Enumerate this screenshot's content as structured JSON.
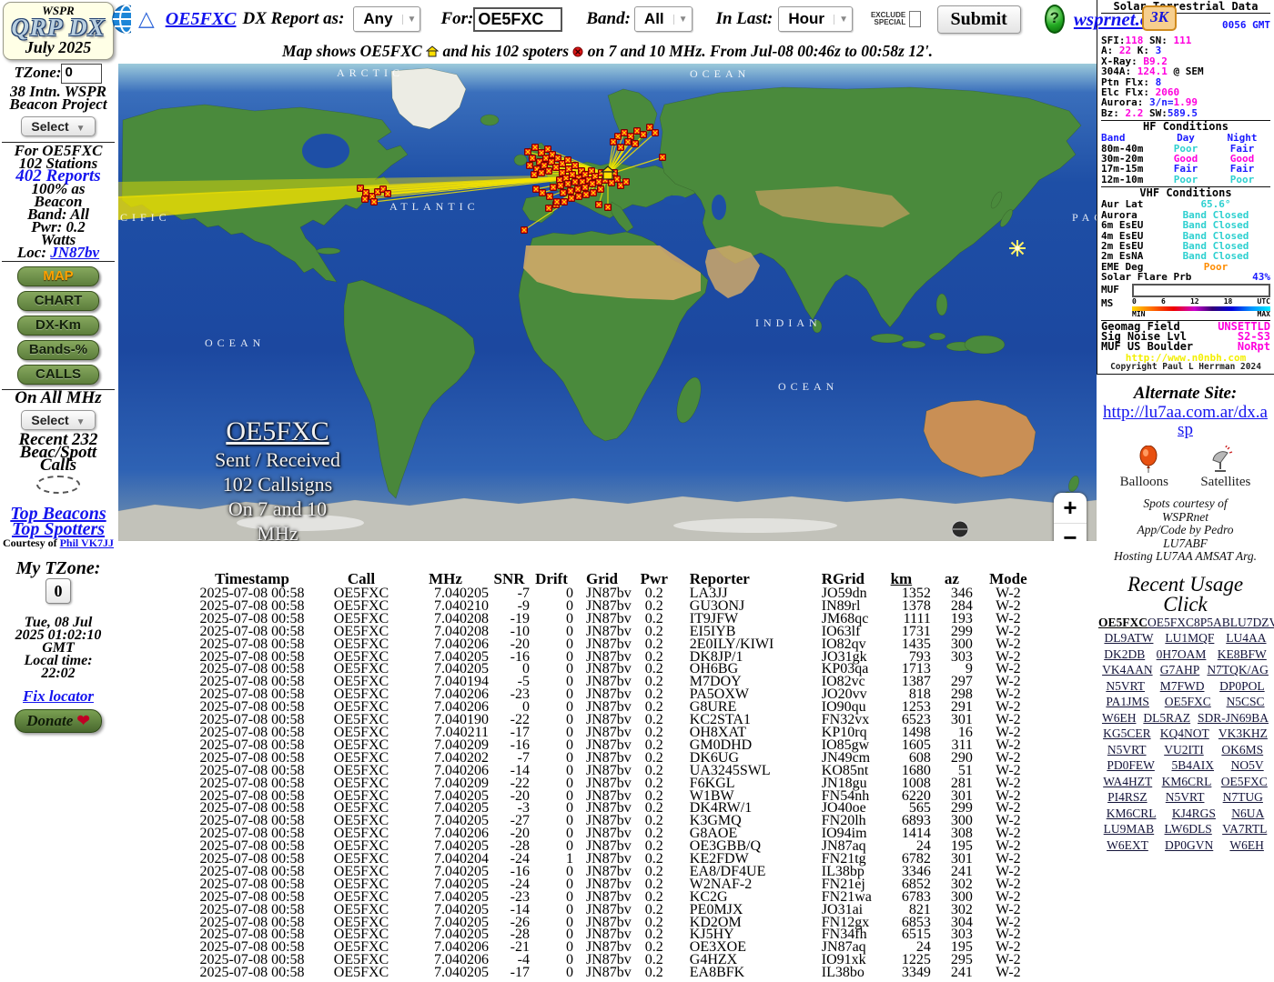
{
  "left": {
    "logo_top": "WSPR",
    "logo_main": "QRP DX",
    "logo_sub": "July 2025",
    "tzone_label": "TZone:",
    "tzone_value": "0",
    "project_line1": "38 Intn. WSPR",
    "project_line2": "Beacon Project",
    "select_label": "Select",
    "for_line": "For OE5FXC",
    "stations_line": "102 Stations",
    "reports_link": "402 Reports",
    "pct_line1": "100% as",
    "pct_line2": "Beacon",
    "band_line": "Band: All",
    "pwr_line1": "Pwr: 0.2",
    "pwr_line2": "Watts",
    "loc_label": "Loc: ",
    "loc_link": "JN87bv",
    "buttons": [
      "MAP",
      "CHART",
      "DX-Km",
      "Bands-%",
      "CALLS"
    ],
    "on_all": "On All MHz",
    "recent_line1": "Recent 232",
    "recent_line2": "Beac/Spott",
    "recent_line3": "Calls",
    "top_beacons": "Top Beacons",
    "top_spotters": "Top Spotters",
    "courtesy": "Courtesy of ",
    "courtesy_link": "Phil VK7JJ",
    "my_tzone": "My TZone:",
    "my_tzone_value": "0",
    "date_line1": "Tue, 08 Jul",
    "date_line2": "2025 01:02:10",
    "date_line3": "GMT",
    "date_line4": "Local time:",
    "date_line5": "22:02",
    "fix_locator": "Fix locator",
    "donate": "Donate",
    "heart": "❤"
  },
  "toolbar": {
    "callsign_link": "OE5FXC",
    "dx_report_as": "DX Report as:",
    "any_select": "Any",
    "for_label": "For:",
    "for_value": "OE5FXC",
    "band_label": "Band:",
    "band_select": "All",
    "in_last_label": "In Last:",
    "in_last_select": "Hour",
    "exclude_line1": "EXCLUDE",
    "exclude_line2": "SPECIAL",
    "submit": "Submit",
    "help": "?",
    "wsprnet": "wsprnet.org",
    "badge_3k": "3K"
  },
  "caption": {
    "p1": "Map shows OE5FXC",
    "p2": "and his 102 spoters",
    "p3": "on 7 and 10 MHz. From Jul-08 00:46z to 00:58z 12'."
  },
  "map": {
    "overlay": [
      "OE5FXC",
      "Sent / Received",
      "102 Callsigns",
      "On 7 and 10",
      "MHz"
    ],
    "labels": [
      "ARCTIC",
      "OCEAN",
      "ATLANTIC",
      "CIFIC",
      "OCEAN",
      "INDIAN",
      "OCEAN",
      "PAC"
    ],
    "zoom_in": "+",
    "zoom_out": "−"
  },
  "solar": {
    "title": "Solar-Terrestrial Data",
    "time": "0056 GMT",
    "lines": [
      [
        {
          "t": "SFI:",
          "c": "k"
        },
        {
          "t": "118",
          "c": "m"
        },
        {
          "t": " SN: ",
          "c": "k"
        },
        {
          "t": "111",
          "c": "m"
        }
      ],
      [
        {
          "t": "A: ",
          "c": "k"
        },
        {
          "t": "22",
          "c": "m"
        },
        {
          "t": " K: ",
          "c": "k"
        },
        {
          "t": "3",
          "c": "b"
        }
      ],
      [
        {
          "t": "X-Ray: ",
          "c": "k"
        },
        {
          "t": "B9.2",
          "c": "m"
        }
      ],
      [
        {
          "t": "304A: ",
          "c": "k"
        },
        {
          "t": "124.1",
          "c": "m"
        },
        {
          "t": " @ SEM",
          "c": "k"
        }
      ],
      [
        {
          "t": "Ptn Flx: ",
          "c": "k"
        },
        {
          "t": "8",
          "c": "b"
        }
      ],
      [
        {
          "t": "Elc Flx: ",
          "c": "k"
        },
        {
          "t": "2060",
          "c": "m"
        }
      ],
      [
        {
          "t": "Aurora: ",
          "c": "k"
        },
        {
          "t": "3/n=",
          "c": "b"
        },
        {
          "t": "1.99",
          "c": "m"
        }
      ],
      [
        {
          "t": "Bz: ",
          "c": "k"
        },
        {
          "t": "2.2",
          "c": "m"
        },
        {
          "t": " SW:",
          "c": "k"
        },
        {
          "t": "589.5",
          "c": "b"
        }
      ]
    ],
    "hf_title": "HF Conditions",
    "hf_headers": [
      "Band",
      "Day",
      "Night"
    ],
    "hf_rows": [
      {
        "band": "80m-40m",
        "day": "Poor",
        "dc": "c",
        "night": "Fair",
        "nc": "b"
      },
      {
        "band": "30m-20m",
        "day": "Good",
        "dc": "m",
        "night": "Good",
        "nc": "m"
      },
      {
        "band": "17m-15m",
        "day": "Fair",
        "dc": "b",
        "night": "Fair",
        "nc": "b"
      },
      {
        "band": "12m-10m",
        "day": "Poor",
        "dc": "c",
        "night": "Poor",
        "nc": "c"
      }
    ],
    "vhf_title": "VHF Conditions",
    "vhf_rows": [
      {
        "label": "Aur Lat",
        "value": "65.6°",
        "c": "c"
      },
      {
        "label": "Aurora",
        "value": "Band Closed",
        "c": "c"
      },
      {
        "label": "6m EsEU",
        "value": "Band Closed",
        "c": "c"
      },
      {
        "label": "4m EsEU",
        "value": "Band Closed",
        "c": "c"
      },
      {
        "label": "2m EsEU",
        "value": "Band Closed",
        "c": "c"
      },
      {
        "label": "2m EsNA",
        "value": "Band Closed",
        "c": "c"
      },
      {
        "label": "EME Deg",
        "value": "Poor",
        "c": "o"
      }
    ],
    "flare_label": "Solar Flare Prb",
    "flare_value": "43%",
    "muf_label": "MUF",
    "ms_label": "MS",
    "scale_ticks": [
      "0",
      "6",
      "12",
      "18",
      "UTC"
    ],
    "scale_min": "MIN",
    "scale_max": "MAX",
    "status_rows": [
      {
        "label": "Geomag Field",
        "value": "UNSETTLD",
        "c": "m"
      },
      {
        "label": "Sig Noise Lvl",
        "value": "S2-S3",
        "c": "m"
      },
      {
        "label": "MUF US Boulder",
        "value": "NoRpt",
        "c": "m"
      }
    ],
    "url": "http://www.n0nbh.com",
    "copyright": "Copyright Paul L Herrman 2024"
  },
  "alternate": {
    "title": "Alternate Site:",
    "link": "http://lu7aa.com.ar/dx.asp",
    "balloons": "Balloons",
    "satellites": "Satellites",
    "credits": [
      "Spots courtesy of",
      "WSPRnet",
      "App/Code by Pedro",
      "LU7ABF",
      "Hosting LU7AA AMSAT Arg."
    ]
  },
  "usage": {
    "title_line1": "Recent Usage",
    "title_line2": "Click",
    "rows": [
      [
        "OE5FXC",
        "OE5FXC",
        "8P5AB",
        "LU7DZV"
      ],
      [
        "DL9ATW",
        "LU1MQF",
        "LU4AA"
      ],
      [
        "DK2DB",
        "0H7OAM",
        "KE8BFW"
      ],
      [
        "VK4AAN",
        "G7AHP",
        "N7TQK/AG"
      ],
      [
        "N5VRT",
        "M7FWD",
        "DP0POL"
      ],
      [
        "PA1JMS",
        "OE5FXC",
        "N5CSC"
      ],
      [
        "W6EH",
        "DL5RAZ",
        "SDR-JN69BA"
      ],
      [
        "KG5CER",
        "KQ4NOT",
        "VK3KHZ"
      ],
      [
        "N5VRT",
        "VU2ITI",
        "OK6MS"
      ],
      [
        "PD0FEW",
        "5B4AIX",
        "NO5V"
      ],
      [
        "WA4HZT",
        "KM6CRL",
        "OE5FXC"
      ],
      [
        "PI4RSZ",
        "N5VRT",
        "N7TUG"
      ],
      [
        "KM6CRL",
        "KJ4RGS",
        "N6UA"
      ],
      [
        "LU9MAB",
        "LW6DLS",
        "VA7RTL"
      ],
      [
        "W6EXT",
        "DP0GVN",
        "W6EH"
      ]
    ]
  },
  "table": {
    "columns": [
      "Timestamp",
      "Call",
      "MHz",
      "SNR",
      "Drift",
      "Grid",
      "Pwr",
      "Reporter",
      "RGrid",
      "km",
      "az",
      "Mode"
    ],
    "rows": [
      [
        "2025-07-08 00:58",
        "OE5FXC",
        "7.040205",
        "-7",
        "0",
        "JN87bv",
        "0.2",
        "LA3JJ",
        "JO59dn",
        "1352",
        "346",
        "W-2"
      ],
      [
        "2025-07-08 00:58",
        "OE5FXC",
        "7.040210",
        "-9",
        "0",
        "JN87bv",
        "0.2",
        "GU3ONJ",
        "IN89rl",
        "1378",
        "284",
        "W-2"
      ],
      [
        "2025-07-08 00:58",
        "OE5FXC",
        "7.040208",
        "-19",
        "0",
        "JN87bv",
        "0.2",
        "IT9JFW",
        "JM68qc",
        "1111",
        "193",
        "W-2"
      ],
      [
        "2025-07-08 00:58",
        "OE5FXC",
        "7.040208",
        "-10",
        "0",
        "JN87bv",
        "0.2",
        "EI5IYB",
        "IO63lf",
        "1731",
        "299",
        "W-2"
      ],
      [
        "2025-07-08 00:58",
        "OE5FXC",
        "7.040206",
        "-20",
        "0",
        "JN87bv",
        "0.2",
        "2E0ILY/KIWI",
        "IO82qv",
        "1435",
        "300",
        "W-2"
      ],
      [
        "2025-07-08 00:58",
        "OE5FXC",
        "7.040205",
        "-16",
        "0",
        "JN87bv",
        "0.2",
        "DK8JP/1",
        "JO31gk",
        "793",
        "303",
        "W-2"
      ],
      [
        "2025-07-08 00:58",
        "OE5FXC",
        "7.040205",
        "0",
        "0",
        "JN87bv",
        "0.2",
        "OH6BG",
        "KP03qa",
        "1713",
        "9",
        "W-2"
      ],
      [
        "2025-07-08 00:58",
        "OE5FXC",
        "7.040194",
        "-5",
        "0",
        "JN87bv",
        "0.2",
        "M7DOY",
        "IO82vc",
        "1387",
        "297",
        "W-2"
      ],
      [
        "2025-07-08 00:58",
        "OE5FXC",
        "7.040206",
        "-23",
        "0",
        "JN87bv",
        "0.2",
        "PA5OXW",
        "JO20vv",
        "818",
        "298",
        "W-2"
      ],
      [
        "2025-07-08 00:58",
        "OE5FXC",
        "7.040206",
        "0",
        "0",
        "JN87bv",
        "0.2",
        "G8URE",
        "IO90qu",
        "1253",
        "291",
        "W-2"
      ],
      [
        "2025-07-08 00:58",
        "OE5FXC",
        "7.040190",
        "-22",
        "0",
        "JN87bv",
        "0.2",
        "KC2STA1",
        "FN32vx",
        "6523",
        "301",
        "W-2"
      ],
      [
        "2025-07-08 00:58",
        "OE5FXC",
        "7.040211",
        "-17",
        "0",
        "JN87bv",
        "0.2",
        "OH8XAT",
        "KP10rq",
        "1498",
        "16",
        "W-2"
      ],
      [
        "2025-07-08 00:58",
        "OE5FXC",
        "7.040209",
        "-16",
        "0",
        "JN87bv",
        "0.2",
        "GM0DHD",
        "IO85gw",
        "1605",
        "311",
        "W-2"
      ],
      [
        "2025-07-08 00:58",
        "OE5FXC",
        "7.040202",
        "-7",
        "0",
        "JN87bv",
        "0.2",
        "DK6UG",
        "JN49cm",
        "608",
        "290",
        "W-2"
      ],
      [
        "2025-07-08 00:58",
        "OE5FXC",
        "7.040206",
        "-14",
        "0",
        "JN87bv",
        "0.2",
        "UA3245SWL",
        "KO85nt",
        "1680",
        "51",
        "W-2"
      ],
      [
        "2025-07-08 00:58",
        "OE5FXC",
        "7.040209",
        "-22",
        "0",
        "JN87bv",
        "0.2",
        "F6KGL",
        "JN18gu",
        "1008",
        "281",
        "W-2"
      ],
      [
        "2025-07-08 00:58",
        "OE5FXC",
        "7.040205",
        "-20",
        "0",
        "JN87bv",
        "0.2",
        "W1BW",
        "FN54nh",
        "6220",
        "301",
        "W-2"
      ],
      [
        "2025-07-08 00:58",
        "OE5FXC",
        "7.040205",
        "-3",
        "0",
        "JN87bv",
        "0.2",
        "DK4RW/1",
        "JO40oe",
        "565",
        "299",
        "W-2"
      ],
      [
        "2025-07-08 00:58",
        "OE5FXC",
        "7.040205",
        "-27",
        "0",
        "JN87bv",
        "0.2",
        "K3GMQ",
        "FN20lh",
        "6893",
        "300",
        "W-2"
      ],
      [
        "2025-07-08 00:58",
        "OE5FXC",
        "7.040206",
        "-20",
        "0",
        "JN87bv",
        "0.2",
        "G8AOE",
        "IO94im",
        "1414",
        "308",
        "W-2"
      ],
      [
        "2025-07-08 00:58",
        "OE5FXC",
        "7.040205",
        "-28",
        "0",
        "JN87bv",
        "0.2",
        "OE3GBB/Q",
        "JN87aq",
        "24",
        "195",
        "W-2"
      ],
      [
        "2025-07-08 00:58",
        "OE5FXC",
        "7.040204",
        "-24",
        "1",
        "JN87bv",
        "0.2",
        "KE2FDW",
        "FN21tg",
        "6782",
        "301",
        "W-2"
      ],
      [
        "2025-07-08 00:58",
        "OE5FXC",
        "7.040205",
        "-16",
        "0",
        "JN87bv",
        "0.2",
        "EA8/DF4UE",
        "IL38bp",
        "3346",
        "241",
        "W-2"
      ],
      [
        "2025-07-08 00:58",
        "OE5FXC",
        "7.040205",
        "-24",
        "0",
        "JN87bv",
        "0.2",
        "W2NAF-2",
        "FN21ej",
        "6852",
        "302",
        "W-2"
      ],
      [
        "2025-07-08 00:58",
        "OE5FXC",
        "7.040205",
        "-23",
        "0",
        "JN87bv",
        "0.2",
        "KC2G",
        "FN21wa",
        "6783",
        "300",
        "W-2"
      ],
      [
        "2025-07-08 00:58",
        "OE5FXC",
        "7.040205",
        "-14",
        "0",
        "JN87bv",
        "0.2",
        "PE0MJX",
        "JO31ai",
        "821",
        "302",
        "W-2"
      ],
      [
        "2025-07-08 00:58",
        "OE5FXC",
        "7.040205",
        "-26",
        "0",
        "JN87bv",
        "0.2",
        "KD2OM",
        "FN12gx",
        "6853",
        "304",
        "W-2"
      ],
      [
        "2025-07-08 00:58",
        "OE5FXC",
        "7.040205",
        "-28",
        "0",
        "JN87bv",
        "0.2",
        "KJ5HY",
        "FN34fh",
        "6515",
        "303",
        "W-2"
      ],
      [
        "2025-07-08 00:58",
        "OE5FXC",
        "7.040206",
        "-21",
        "0",
        "JN87bv",
        "0.2",
        "OE3XOE",
        "JN87aq",
        "24",
        "195",
        "W-2"
      ],
      [
        "2025-07-08 00:58",
        "OE5FXC",
        "7.040206",
        "-4",
        "0",
        "JN87bv",
        "0.2",
        "G4HZX",
        "IO91xk",
        "1225",
        "295",
        "W-2"
      ],
      [
        "2025-07-08 00:58",
        "OE5FXC",
        "7.040205",
        "-17",
        "0",
        "JN87bv",
        "0.2",
        "EA8BFK",
        "IL38bo",
        "3349",
        "241",
        "W-2"
      ]
    ]
  }
}
